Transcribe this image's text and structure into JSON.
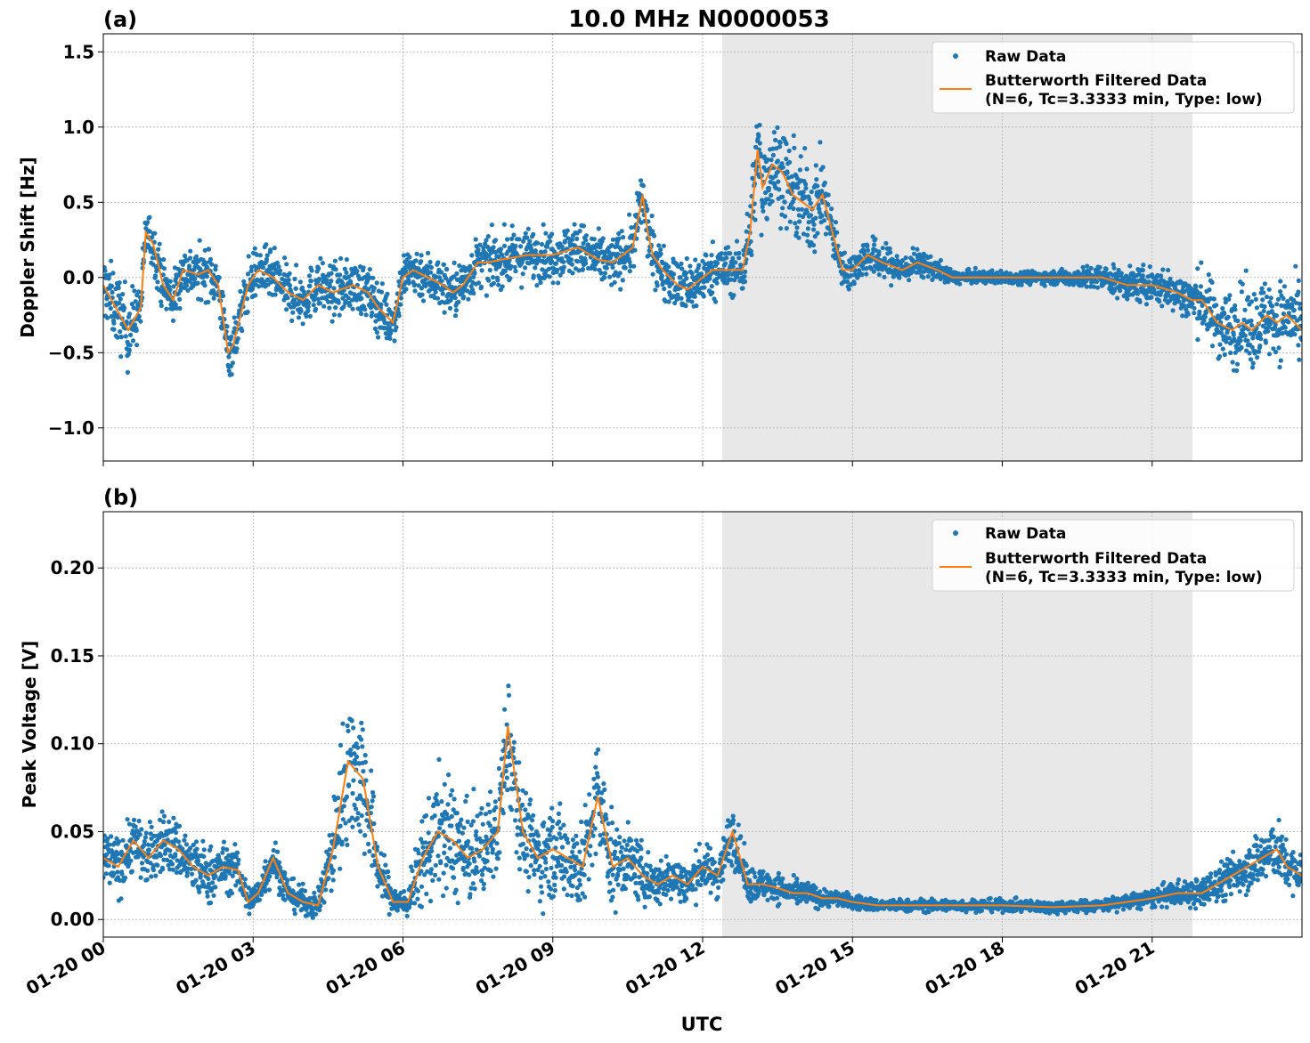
{
  "figure": {
    "title": "10.0 MHz N0000053",
    "xlabel": "UTC",
    "shaded_interval": [
      "01-20 12:15",
      "01-20 21:45"
    ],
    "colors": {
      "raw": "#1f77b4",
      "filtered": "#ff7f0e",
      "shade": "#e8e8e8",
      "grid": "#b0b0b0"
    }
  },
  "legend": {
    "raw_label": "Raw Data",
    "filtered_label_line1": "Butterworth Filtered Data",
    "filtered_label_line2": "(N=6, Tc=3.3333 min, Type: low)"
  },
  "chart_data": [
    {
      "type": "scatter",
      "panel_label": "(a)",
      "ylabel": "Doppler Shift [Hz]",
      "xlim": [
        "01-20 00:00",
        "01-20 24:00"
      ],
      "ylim": [
        -1.22,
        1.62
      ],
      "x_tick_labels": [
        "01-20 00",
        "01-20 03",
        "01-20 06",
        "01-20 09",
        "01-20 12",
        "01-20 15",
        "01-20 18",
        "01-20 21"
      ],
      "y_ticks": [
        1.5,
        1.0,
        0.5,
        0.0,
        -0.5,
        -1.0
      ],
      "y_tick_labels": [
        "1.5",
        "1.0",
        "0.5",
        "0.0",
        "−0.5",
        "−1.0"
      ],
      "grid": true,
      "legend_position": "top-right",
      "series": [
        {
          "name": "Butterworth Filtered Data",
          "x_hours": [
            0,
            0.5,
            0.75,
            0.85,
            1.0,
            1.2,
            1.4,
            1.6,
            1.9,
            2.1,
            2.3,
            2.5,
            2.6,
            2.75,
            2.9,
            3.1,
            3.4,
            3.7,
            4.0,
            4.3,
            4.6,
            5.0,
            5.3,
            5.5,
            5.8,
            6.0,
            6.2,
            6.5,
            6.8,
            7.0,
            7.2,
            7.4,
            7.5,
            7.7,
            8.0,
            8.5,
            9.0,
            9.5,
            9.9,
            10.2,
            10.4,
            10.6,
            10.8,
            10.9,
            11.0,
            11.2,
            11.5,
            11.7,
            12.0,
            12.2,
            12.5,
            12.8,
            12.95,
            13.1,
            13.2,
            13.4,
            13.6,
            13.8,
            14.0,
            14.2,
            14.4,
            14.6,
            14.8,
            15.0,
            15.3,
            15.6,
            16.0,
            16.3,
            16.7,
            17.0,
            18.0,
            19.0,
            20.0,
            20.5,
            21.0,
            21.5,
            21.8,
            22.0,
            22.3,
            22.6,
            22.8,
            23.0,
            23.3,
            23.5,
            23.7,
            24.0
          ],
          "y": [
            -0.05,
            -0.35,
            -0.2,
            0.3,
            0.22,
            -0.05,
            -0.15,
            0.05,
            0.02,
            0.05,
            -0.05,
            -0.5,
            -0.45,
            -0.25,
            -0.05,
            0.05,
            0.0,
            -0.1,
            -0.15,
            -0.05,
            -0.1,
            -0.05,
            -0.1,
            -0.2,
            -0.3,
            0.0,
            0.05,
            0.0,
            -0.05,
            -0.1,
            -0.05,
            0.05,
            0.1,
            0.1,
            0.12,
            0.15,
            0.15,
            0.2,
            0.12,
            0.1,
            0.15,
            0.2,
            0.55,
            0.3,
            0.15,
            0.05,
            -0.05,
            -0.08,
            0.0,
            0.05,
            0.05,
            0.05,
            0.3,
            0.85,
            0.6,
            0.75,
            0.7,
            0.55,
            0.5,
            0.45,
            0.55,
            0.3,
            0.05,
            0.05,
            0.15,
            0.1,
            0.05,
            0.1,
            0.05,
            0.0,
            0.0,
            0.0,
            0.0,
            -0.05,
            -0.05,
            -0.1,
            -0.15,
            -0.15,
            -0.3,
            -0.35,
            -0.3,
            -0.35,
            -0.25,
            -0.3,
            -0.25,
            -0.35
          ]
        },
        {
          "name": "Raw Data",
          "spread_hz": [
            0.25,
            0.3,
            0.2,
            0.2,
            0.2,
            0.2,
            0.2,
            0.2,
            0.2,
            0.2,
            0.2,
            0.2,
            0.2,
            0.2,
            0.2,
            0.2,
            0.2,
            0.2,
            0.2,
            0.2,
            0.2,
            0.2,
            0.2,
            0.2,
            0.2,
            0.2,
            0.2,
            0.2,
            0.2,
            0.2,
            0.2,
            0.2,
            0.2,
            0.2,
            0.2,
            0.2,
            0.2,
            0.2,
            0.2,
            0.2,
            0.2,
            0.2,
            0.25,
            0.2,
            0.2,
            0.2,
            0.2,
            0.25,
            0.2,
            0.2,
            0.2,
            0.2,
            0.3,
            0.4,
            0.4,
            0.35,
            0.35,
            0.35,
            0.35,
            0.35,
            0.3,
            0.2,
            0.12,
            0.15,
            0.15,
            0.15,
            0.12,
            0.1,
            0.08,
            0.05,
            0.05,
            0.05,
            0.1,
            0.12,
            0.15,
            0.15,
            0.2,
            0.25,
            0.25,
            0.3,
            0.3,
            0.3,
            0.3,
            0.3,
            0.3,
            0.3
          ]
        }
      ]
    },
    {
      "type": "scatter",
      "panel_label": "(b)",
      "ylabel": "Peak Voltage [V]",
      "xlim": [
        "01-20 00:00",
        "01-20 24:00"
      ],
      "ylim": [
        -0.01,
        0.232
      ],
      "x_tick_labels": [
        "01-20 00",
        "01-20 03",
        "01-20 06",
        "01-20 09",
        "01-20 12",
        "01-20 15",
        "01-20 18",
        "01-20 21"
      ],
      "y_ticks": [
        0.2,
        0.15,
        0.1,
        0.05,
        0.0
      ],
      "y_tick_labels": [
        "0.20",
        "0.15",
        "0.10",
        "0.05",
        "0.00"
      ],
      "grid": true,
      "legend_position": "top-right",
      "series": [
        {
          "name": "Butterworth Filtered Data",
          "x_hours": [
            0,
            0.3,
            0.6,
            0.9,
            1.2,
            1.5,
            1.8,
            2.1,
            2.4,
            2.7,
            2.9,
            3.1,
            3.4,
            3.7,
            4.0,
            4.3,
            4.6,
            4.9,
            5.2,
            5.5,
            5.8,
            6.1,
            6.4,
            6.7,
            7.0,
            7.3,
            7.6,
            7.9,
            8.1,
            8.4,
            8.7,
            9.0,
            9.3,
            9.6,
            9.9,
            10.2,
            10.5,
            10.8,
            11.1,
            11.4,
            11.7,
            12.0,
            12.3,
            12.6,
            12.9,
            13.2,
            13.5,
            13.8,
            14.1,
            14.4,
            14.7,
            15.0,
            15.5,
            16.0,
            17.0,
            18.0,
            19.0,
            20.0,
            20.5,
            21.0,
            21.5,
            22.0,
            22.3,
            22.6,
            22.9,
            23.2,
            23.5,
            23.7,
            24.0
          ],
          "y": [
            0.035,
            0.03,
            0.045,
            0.035,
            0.045,
            0.04,
            0.03,
            0.025,
            0.03,
            0.028,
            0.01,
            0.015,
            0.035,
            0.015,
            0.01,
            0.008,
            0.04,
            0.09,
            0.08,
            0.03,
            0.01,
            0.01,
            0.035,
            0.05,
            0.045,
            0.035,
            0.04,
            0.05,
            0.11,
            0.05,
            0.035,
            0.04,
            0.035,
            0.03,
            0.07,
            0.03,
            0.035,
            0.025,
            0.02,
            0.025,
            0.02,
            0.03,
            0.025,
            0.05,
            0.02,
            0.02,
            0.018,
            0.015,
            0.015,
            0.012,
            0.012,
            0.01,
            0.008,
            0.008,
            0.008,
            0.008,
            0.007,
            0.008,
            0.01,
            0.012,
            0.015,
            0.015,
            0.02,
            0.025,
            0.03,
            0.035,
            0.04,
            0.03,
            0.025
          ]
        },
        {
          "name": "Raw Data",
          "spread_v": [
            0.02,
            0.02,
            0.02,
            0.02,
            0.02,
            0.02,
            0.02,
            0.02,
            0.015,
            0.015,
            0.01,
            0.01,
            0.015,
            0.01,
            0.01,
            0.008,
            0.03,
            0.05,
            0.05,
            0.02,
            0.01,
            0.01,
            0.03,
            0.04,
            0.04,
            0.03,
            0.03,
            0.03,
            0.05,
            0.03,
            0.03,
            0.03,
            0.03,
            0.03,
            0.04,
            0.03,
            0.02,
            0.02,
            0.015,
            0.015,
            0.015,
            0.015,
            0.015,
            0.02,
            0.012,
            0.01,
            0.01,
            0.008,
            0.008,
            0.006,
            0.005,
            0.005,
            0.004,
            0.004,
            0.004,
            0.004,
            0.004,
            0.004,
            0.005,
            0.006,
            0.008,
            0.01,
            0.012,
            0.015,
            0.015,
            0.02,
            0.02,
            0.015,
            0.015
          ]
        }
      ]
    }
  ]
}
